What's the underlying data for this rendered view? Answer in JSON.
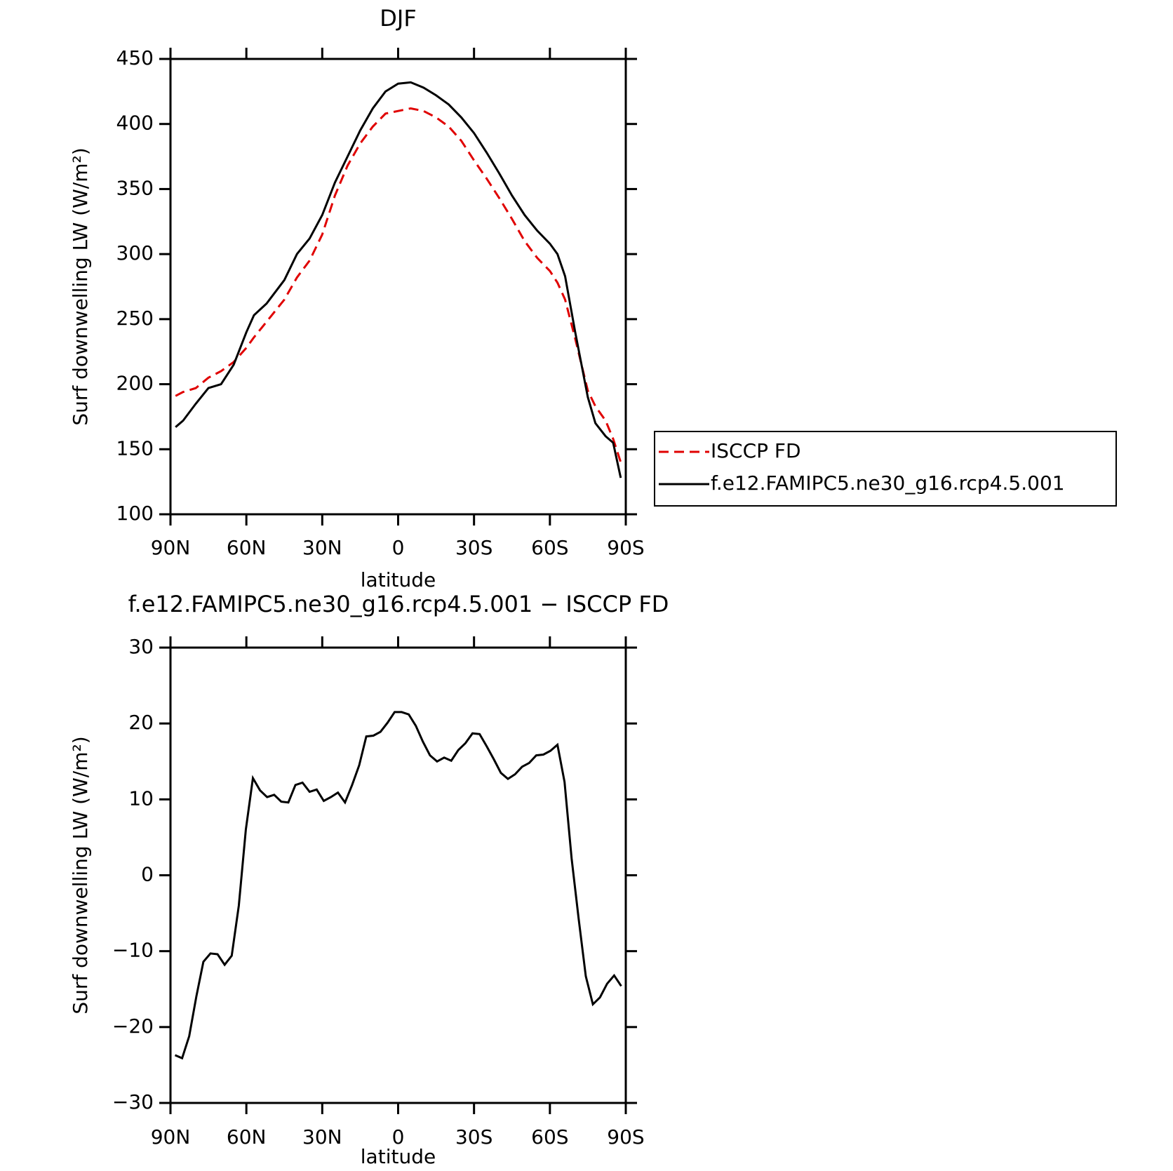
{
  "chart_data": [
    {
      "type": "line",
      "title": "DJF",
      "xlabel": "latitude",
      "ylabel": "Surf downwelling LW (W/m²)",
      "x": [
        88,
        85,
        80,
        75,
        70,
        65,
        60,
        57,
        52,
        45,
        40,
        35,
        30,
        25,
        20,
        15,
        10,
        5,
        0,
        -5,
        -10,
        -15,
        -20,
        -25,
        -30,
        -35,
        -40,
        -45,
        -50,
        -55,
        -60,
        -63,
        -66,
        -70,
        -75,
        -78,
        -82,
        -85,
        -88
      ],
      "series": [
        {
          "name": "ISCCP FD",
          "color": "#e00000",
          "linestyle": "dashed",
          "values": [
            191,
            194,
            197,
            205,
            210,
            217,
            228,
            236,
            248,
            265,
            282,
            295,
            315,
            345,
            368,
            385,
            398,
            408,
            410,
            412,
            410,
            405,
            398,
            387,
            372,
            358,
            343,
            327,
            310,
            297,
            287,
            278,
            265,
            235,
            195,
            183,
            172,
            158,
            140
          ]
        },
        {
          "name": "f.e12.FAMIPC5.ne30_g16.rcp4.5.001",
          "color": "#000000",
          "linestyle": "solid",
          "values": [
            167,
            172,
            185,
            197,
            200,
            215,
            240,
            253,
            262,
            280,
            300,
            312,
            330,
            355,
            375,
            395,
            412,
            425,
            431,
            432,
            428,
            422,
            415,
            405,
            393,
            378,
            362,
            345,
            330,
            318,
            308,
            300,
            283,
            240,
            190,
            170,
            160,
            155,
            128
          ]
        }
      ],
      "xlim": [
        90,
        -90
      ],
      "xticks": [
        {
          "value": 90,
          "label": "90N"
        },
        {
          "value": 60,
          "label": "60N"
        },
        {
          "value": 30,
          "label": "30N"
        },
        0,
        {
          "value": -30,
          "label": "30S"
        },
        {
          "value": -60,
          "label": "60S"
        },
        {
          "value": -90,
          "label": "90S"
        }
      ],
      "ylim": [
        100,
        450
      ],
      "yticks": [
        100,
        150,
        200,
        250,
        300,
        350,
        400,
        450
      ],
      "legend": "right"
    },
    {
      "type": "line",
      "title": "f.e12.FAMIPC5.ne30_g16.rcp4.5.001 − ISCCP FD",
      "xlabel": "latitude",
      "ylabel": "Surf downwelling LW (W/m²)",
      "x": [
        88.2,
        85.4,
        82.6,
        79.8,
        77.0,
        74.2,
        71.4,
        68.6,
        65.8,
        63.0,
        60.2,
        57.4,
        54.6,
        51.8,
        49.0,
        46.2,
        43.4,
        40.6,
        37.8,
        35.0,
        32.2,
        29.4,
        26.6,
        23.8,
        21.0,
        18.2,
        15.4,
        12.6,
        9.8,
        7.0,
        4.2,
        1.4,
        -1.4,
        -4.2,
        -7.0,
        -9.8,
        -12.6,
        -15.4,
        -18.2,
        -21.0,
        -23.8,
        -26.6,
        -29.4,
        -32.2,
        -35.0,
        -37.8,
        -40.6,
        -43.4,
        -46.2,
        -49.0,
        -51.8,
        -54.6,
        -57.4,
        -60.2,
        -63.0,
        -65.8,
        -68.6,
        -71.4,
        -74.2,
        -77.0,
        -79.8,
        -82.6,
        -85.4,
        -88.2
      ],
      "series": [
        {
          "color": "#000000",
          "linestyle": "solid",
          "values": [
            -23.7,
            -24.1,
            -21.2,
            -16,
            -11.4,
            -10.3,
            -10.4,
            -11.8,
            -10.6,
            -4,
            6,
            12.8,
            11.2,
            10.3,
            10.6,
            9.7,
            9.6,
            11.9,
            12.2,
            11,
            11.3,
            9.8,
            10.3,
            10.9,
            9.6,
            11.9,
            14.5,
            18.3,
            18.4,
            18.9,
            20.1,
            21.5,
            21.5,
            21.2,
            19.7,
            17.6,
            15.8,
            15,
            15.5,
            15.1,
            16.5,
            17.4,
            18.7,
            18.6,
            17,
            15.3,
            13.5,
            12.7,
            13.3,
            14.3,
            14.8,
            15.8,
            15.9,
            16.4,
            17.2,
            12.3,
            2.2,
            -5.8,
            -13.3,
            -17,
            -16.1,
            -14.3,
            -13.2,
            -14.6
          ]
        }
      ],
      "xlim": [
        90,
        -90
      ],
      "xticks": [
        {
          "value": 90,
          "label": "90N"
        },
        {
          "value": 60,
          "label": "60N"
        },
        {
          "value": 30,
          "label": "30N"
        },
        0,
        {
          "value": -30,
          "label": "30S"
        },
        {
          "value": -60,
          "label": "60S"
        },
        {
          "value": -90,
          "label": "90S"
        }
      ],
      "ylim": [
        -30,
        30
      ],
      "yticks": [
        {
          "value": -30,
          "label": "−30"
        },
        {
          "value": -20,
          "label": "−20"
        },
        {
          "value": -10,
          "label": "−10"
        },
        0,
        10,
        20,
        30
      ]
    }
  ]
}
